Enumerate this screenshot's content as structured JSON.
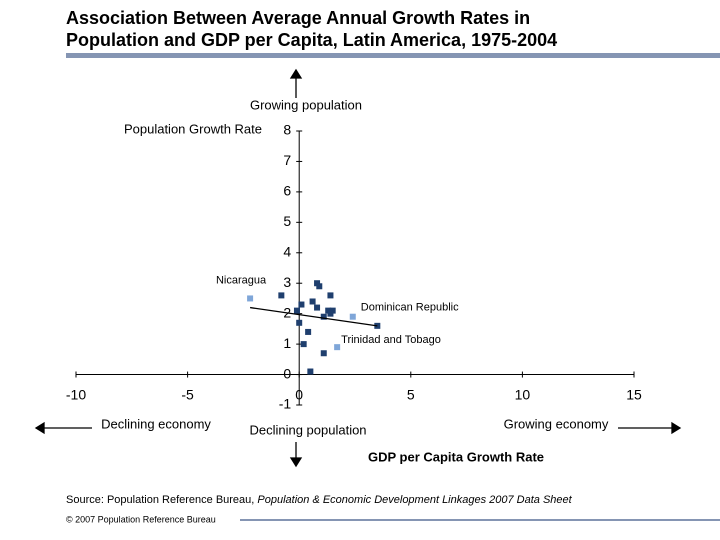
{
  "chart_data": {
    "type": "scatter",
    "title": "Association Between Average Annual Growth Rates in Population and GDP per Capita, Latin America, 1975-2004",
    "x_label": "GDP per Capita Growth Rate",
    "y_label": "Population Growth Rate",
    "annotations": {
      "up": "Growing population",
      "down": "Declining population",
      "left": "Declining economy",
      "right": "Growing economy"
    },
    "point_labels": {
      "Nicaragua": 0,
      "Dominican Republic": 19,
      "Trinidad and Tobago": 18
    },
    "x": [
      -2.2,
      -0.8,
      -0.1,
      0.1,
      0.0,
      0.2,
      0.4,
      0.5,
      0.6,
      0.8,
      0.9,
      0.8,
      1.1,
      1.1,
      1.3,
      1.4,
      1.5,
      1.4,
      1.7,
      2.4,
      3.5
    ],
    "values": [
      2.5,
      2.6,
      2.1,
      2.3,
      1.7,
      1.0,
      1.4,
      0.1,
      2.4,
      3.0,
      2.9,
      2.2,
      1.9,
      0.7,
      2.1,
      2.6,
      2.1,
      2.0,
      0.9,
      1.9,
      1.6
    ],
    "colors": [
      "#7fa6d8",
      "#1f3f6e",
      "#1f3f6e",
      "#1f3f6e",
      "#1f3f6e",
      "#1f3f6e",
      "#1f3f6e",
      "#1f3f6e",
      "#1f3f6e",
      "#1f3f6e",
      "#1f3f6e",
      "#1f3f6e",
      "#1f3f6e",
      "#1f3f6e",
      "#1f3f6e",
      "#1f3f6e",
      "#1f3f6e",
      "#1f3f6e",
      "#7fa6d8",
      "#7fa6d8",
      "#1f3f6e"
    ],
    "trendline": {
      "x": [
        -2.2,
        3.5
      ],
      "values": [
        2.2,
        1.6
      ]
    },
    "xlim": [
      -10,
      15
    ],
    "xticks": [
      -10,
      -5,
      0,
      5,
      10,
      15
    ],
    "ylim": [
      -1,
      8
    ],
    "yticks": [
      -1,
      0,
      1,
      2,
      3,
      4,
      5,
      6,
      7,
      8
    ],
    "source_prefix": "Source: Population Reference Bureau, ",
    "source_title": "Population & Economic Development Linkages 2007 Data Sheet",
    "footer": "© 2007 Population Reference Bureau"
  }
}
